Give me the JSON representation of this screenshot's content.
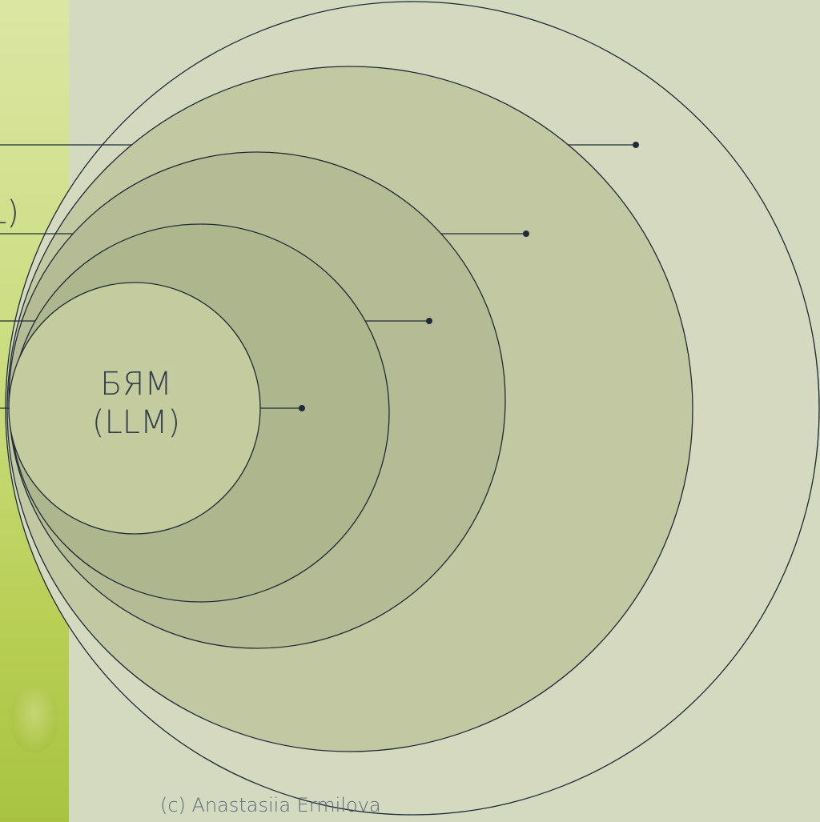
{
  "diagram": {
    "center_label_line1": "БЯМ",
    "center_label_line2": "(LLM)",
    "partial_outer_label": "L)",
    "credit": "(c) Anastasiia Ermilova"
  },
  "colors": {
    "background": "#d4dac0",
    "circle_outer": "#d4d9bf",
    "circle_2": "#c2c8a2",
    "circle_3": "#b5bb95",
    "circle_4": "#adb68c",
    "circle_inner": "#c4cb9f",
    "stroke": "#1f2b36",
    "text": "#34404c"
  }
}
